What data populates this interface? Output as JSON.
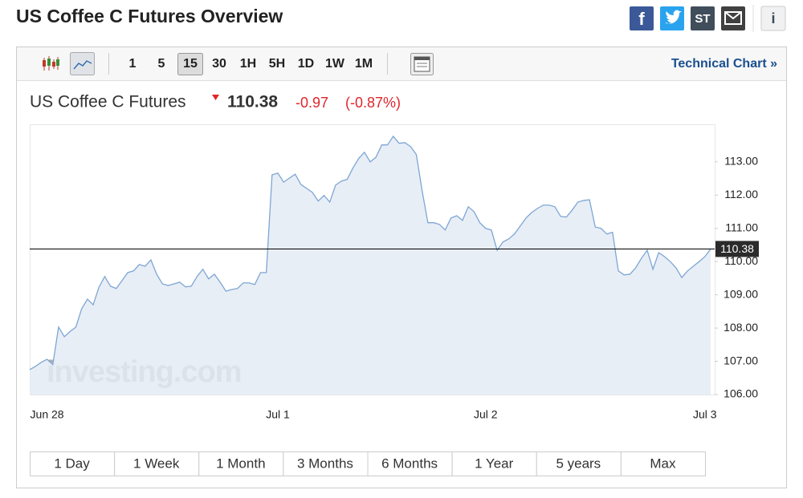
{
  "header": {
    "title": "US Coffee C Futures Overview",
    "share": {
      "stocktwits": "ST"
    }
  },
  "toolbar": {
    "intervals": [
      "1",
      "5",
      "15",
      "30",
      "1H",
      "5H",
      "1D",
      "1W",
      "1M"
    ],
    "active_interval": "15",
    "link": "Technical Chart »"
  },
  "chart_data": {
    "type": "area",
    "title": "US Coffee C Futures",
    "last": 110.38,
    "change": -0.97,
    "change_percent": {
      "value": -0.87,
      "label": "(-0.87%)"
    },
    "watermark": "investing.com",
    "color": "#7ea6d3",
    "fill_color": "#e4ebf5",
    "change_color": "#e0262b",
    "categories": [
      null,
      null,
      null,
      "Jun 28",
      null,
      null,
      null,
      null,
      null,
      null,
      null,
      null,
      null,
      null,
      null,
      null,
      null,
      null,
      null,
      null,
      null,
      null,
      null,
      null,
      null,
      null,
      null,
      null,
      null,
      null,
      null,
      null,
      null,
      null,
      null,
      null,
      null,
      null,
      null,
      null,
      null,
      null,
      null,
      "Jul 1",
      null,
      null,
      null,
      null,
      null,
      null,
      null,
      null,
      null,
      null,
      null,
      null,
      null,
      null,
      null,
      null,
      null,
      null,
      null,
      null,
      null,
      null,
      null,
      null,
      null,
      null,
      null,
      null,
      null,
      null,
      null,
      null,
      null,
      null,
      null,
      "Jul 2",
      null,
      null,
      null,
      null,
      null,
      null,
      null,
      null,
      null,
      null,
      null,
      null,
      null,
      null,
      null,
      null,
      null,
      null,
      null,
      null,
      null,
      null,
      null,
      null,
      null,
      null,
      null,
      null,
      null,
      null,
      null,
      null,
      null,
      null,
      null,
      null,
      null,
      "Jul 3",
      null
    ],
    "values": [
      106.75,
      106.85,
      106.97,
      107.06,
      106.9,
      108.03,
      107.74,
      107.9,
      108.03,
      108.58,
      108.87,
      108.7,
      109.23,
      109.55,
      109.26,
      109.19,
      109.43,
      109.67,
      109.72,
      109.91,
      109.86,
      110.05,
      109.62,
      109.33,
      109.28,
      109.33,
      109.38,
      109.24,
      109.26,
      109.55,
      109.77,
      109.48,
      109.62,
      109.38,
      109.11,
      109.16,
      109.19,
      109.36,
      109.36,
      109.31,
      109.67,
      109.67,
      112.61,
      112.66,
      112.39,
      112.51,
      112.63,
      112.32,
      112.2,
      112.08,
      111.82,
      111.99,
      111.79,
      112.3,
      112.42,
      112.47,
      112.81,
      113.1,
      113.29,
      113.0,
      113.14,
      113.51,
      113.51,
      113.77,
      113.56,
      113.58,
      113.46,
      113.22,
      112.13,
      111.17,
      111.17,
      111.12,
      110.95,
      111.31,
      111.38,
      111.24,
      111.65,
      111.5,
      111.17,
      111.0,
      110.95,
      110.34,
      110.59,
      110.68,
      110.83,
      111.07,
      111.31,
      111.48,
      111.6,
      111.7,
      111.7,
      111.65,
      111.36,
      111.34,
      111.55,
      111.79,
      111.84,
      111.86,
      111.04,
      111.0,
      110.83,
      110.88,
      109.72,
      109.6,
      109.62,
      109.81,
      110.1,
      110.34,
      109.77,
      110.27,
      110.15,
      110.0,
      109.81,
      109.52,
      109.72,
      109.86,
      110.0,
      110.15,
      110.38
    ],
    "ylim": [
      106,
      114.13
    ],
    "yticks": [
      {
        "value": 106,
        "label": "106.00"
      },
      {
        "value": 107,
        "label": "107.00"
      },
      {
        "value": 108,
        "label": "108.00"
      },
      {
        "value": 109,
        "label": "109.00"
      },
      {
        "value": 110,
        "label": "110.00"
      },
      {
        "value": 111,
        "label": "111.00"
      },
      {
        "value": 112,
        "label": "112.00"
      },
      {
        "value": 113,
        "label": "113.00"
      }
    ],
    "ranges": [
      "1 Day",
      "1 Week",
      "1 Month",
      "3 Months",
      "6 Months",
      "1 Year",
      "5 years",
      "Max"
    ]
  }
}
